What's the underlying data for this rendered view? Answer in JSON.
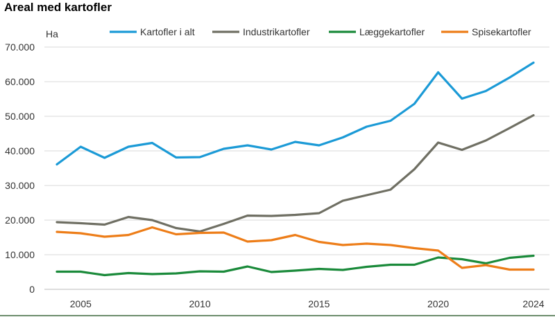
{
  "chart_data": {
    "type": "line",
    "title": "Areal med kartofler",
    "ylabel": "Ha",
    "xlabel": "",
    "ylim": [
      0,
      70000
    ],
    "xlim": [
      2004,
      2024
    ],
    "yticks": [
      "0",
      "10.000",
      "20.000",
      "30.000",
      "40.000",
      "50.000",
      "60.000",
      "70.000"
    ],
    "xticks": [
      "2005",
      "2010",
      "2015",
      "2020",
      "2024"
    ],
    "grid": "horizontal",
    "legend_position": "top",
    "x": [
      2004,
      2005,
      2006,
      2007,
      2008,
      2009,
      2010,
      2011,
      2012,
      2013,
      2014,
      2015,
      2016,
      2017,
      2018,
      2019,
      2020,
      2021,
      2022,
      2023,
      2024
    ],
    "series": [
      {
        "name": "Kartofler i alt",
        "color": "#1b9ad6",
        "values": [
          36100,
          41200,
          38000,
          41200,
          42300,
          38100,
          38200,
          40600,
          41600,
          40400,
          42600,
          41600,
          43900,
          47000,
          48700,
          53600,
          62700,
          55100,
          57300,
          61200,
          65500
        ]
      },
      {
        "name": "Industrikartofler",
        "color": "#6f6f63",
        "values": [
          19400,
          19100,
          18700,
          20900,
          20000,
          17700,
          16700,
          18900,
          21300,
          21200,
          21500,
          22000,
          25600,
          27200,
          28800,
          34700,
          42400,
          40300,
          43000,
          46600,
          50300
        ]
      },
      {
        "name": "Læggekartofler",
        "color": "#1a8a3a",
        "values": [
          5100,
          5100,
          4100,
          4700,
          4400,
          4600,
          5200,
          5100,
          6600,
          5000,
          5400,
          5900,
          5600,
          6500,
          7100,
          7100,
          9200,
          8700,
          7500,
          9100,
          9700
        ]
      },
      {
        "name": "Spisekartofler",
        "color": "#ed7d18",
        "values": [
          16600,
          16200,
          15200,
          15700,
          17900,
          15900,
          16300,
          16400,
          13800,
          14200,
          15700,
          13700,
          12800,
          13200,
          12800,
          11900,
          11200,
          6200,
          7000,
          5700,
          5700
        ]
      }
    ]
  }
}
